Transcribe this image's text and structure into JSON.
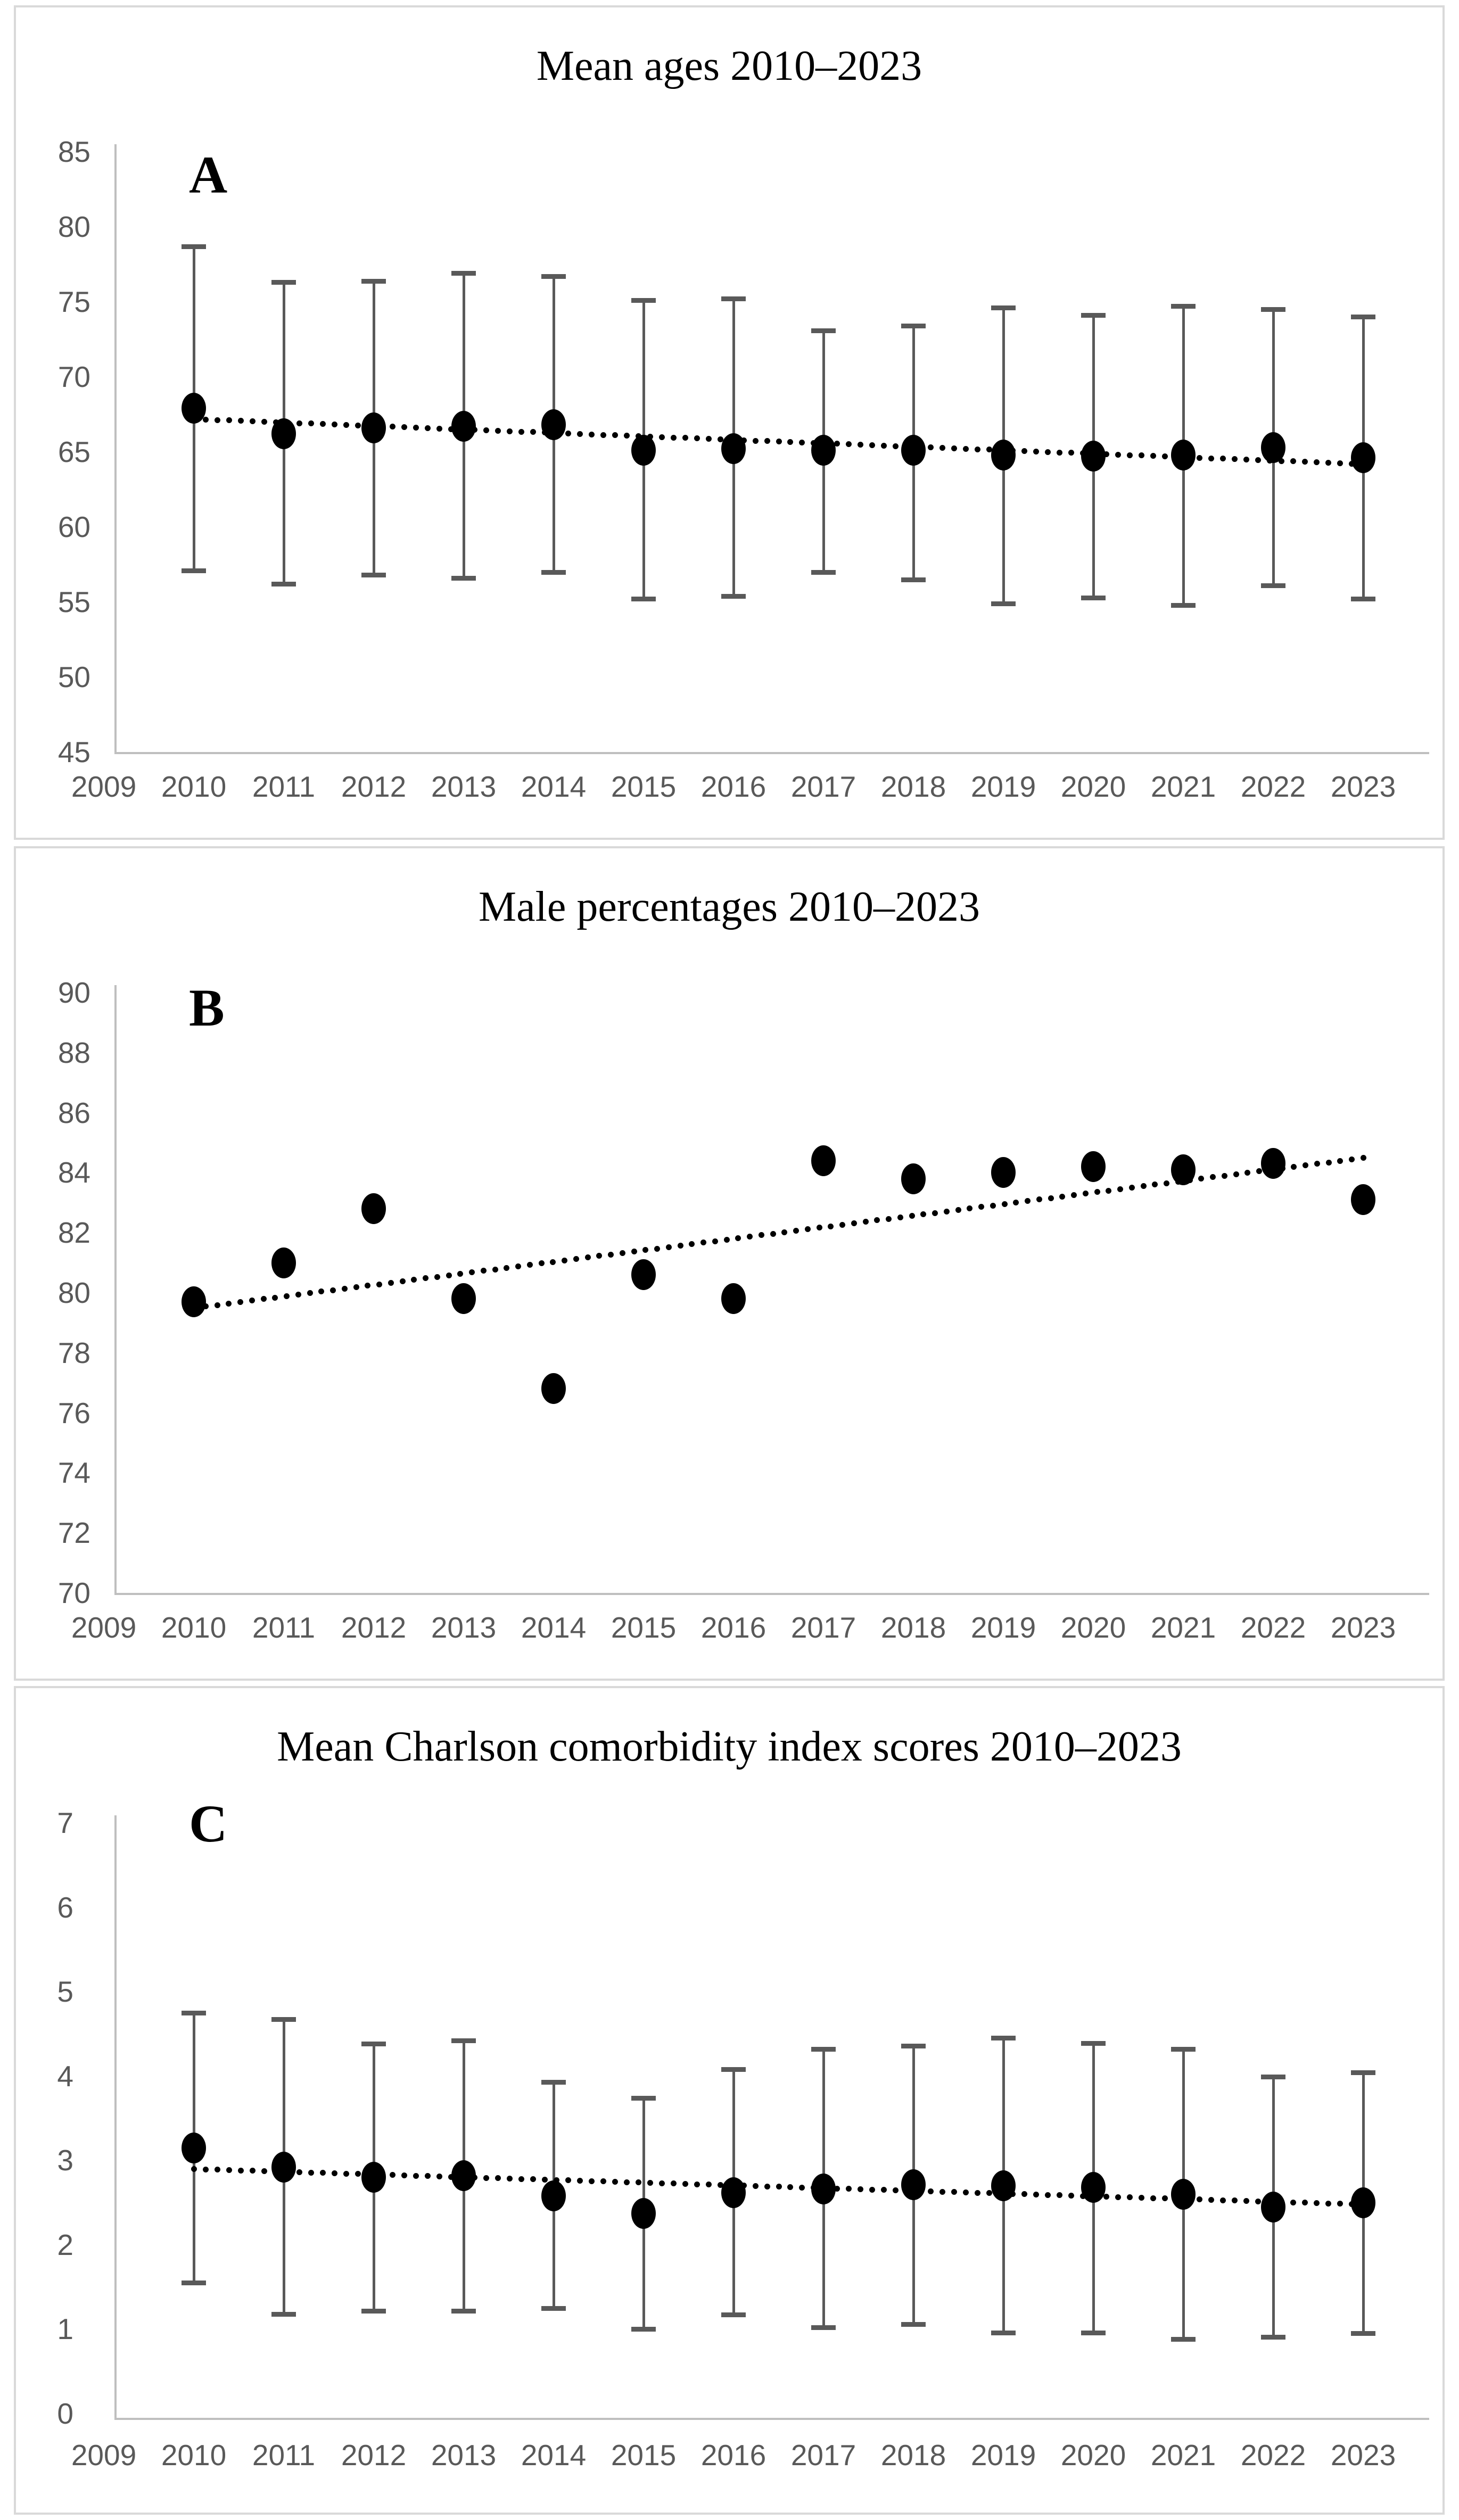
{
  "figure": {
    "background": "#ffffff",
    "panel_border_color": "#d9d9d9",
    "axis_line_color": "#bfbfbf",
    "tick_text_color": "#595959",
    "marker_color": "#000000",
    "error_bar_color": "#595959"
  },
  "chart_data": [
    {
      "id": "A",
      "type": "scatter",
      "title": "Mean ages 2010–2023",
      "panel_label": "A",
      "xlabel": "",
      "ylabel": "",
      "grid": false,
      "legend": false,
      "x_tick_labels": [
        "2009",
        "2010",
        "2011",
        "2012",
        "2013",
        "2014",
        "2015",
        "2016",
        "2017",
        "2018",
        "2019",
        "2020",
        "2021",
        "2022",
        "2023"
      ],
      "years": [
        2010,
        2011,
        2012,
        2013,
        2014,
        2015,
        2016,
        2017,
        2018,
        2019,
        2020,
        2021,
        2022,
        2023
      ],
      "ylim": [
        45,
        85
      ],
      "yticks": [
        85,
        80,
        75,
        70,
        65,
        60,
        55,
        50,
        45
      ],
      "series": [
        {
          "name": "Mean age with error bars",
          "values": [
            67.9,
            66.2,
            66.6,
            66.7,
            66.8,
            65.1,
            65.2,
            65.1,
            65.1,
            64.8,
            64.7,
            64.8,
            65.3,
            64.6
          ],
          "error_low": [
            57.1,
            56.2,
            56.8,
            56.6,
            57.0,
            55.2,
            55.4,
            57.0,
            56.5,
            54.9,
            55.3,
            54.8,
            56.1,
            55.2
          ],
          "error_high": [
            78.7,
            76.3,
            76.4,
            76.9,
            76.7,
            75.1,
            75.2,
            73.1,
            73.4,
            74.6,
            74.1,
            74.7,
            74.5,
            74.0
          ]
        }
      ],
      "trend": {
        "style": "dotted-linear",
        "x_start": 2010,
        "y_start": 67.2,
        "x_end": 2023,
        "y_end": 64.2
      }
    },
    {
      "id": "B",
      "type": "scatter",
      "title": "Male percentages 2010–2023",
      "panel_label": "B",
      "xlabel": "",
      "ylabel": "",
      "grid": false,
      "legend": false,
      "x_tick_labels": [
        "2009",
        "2010",
        "2011",
        "2012",
        "2013",
        "2014",
        "2015",
        "2016",
        "2017",
        "2018",
        "2019",
        "2020",
        "2021",
        "2022",
        "2023"
      ],
      "years": [
        2010,
        2011,
        2012,
        2013,
        2014,
        2015,
        2016,
        2017,
        2018,
        2019,
        2020,
        2021,
        2022,
        2023
      ],
      "ylim": [
        70,
        90
      ],
      "yticks": [
        90,
        88,
        86,
        84,
        82,
        80,
        78,
        76,
        74,
        72,
        70
      ],
      "series": [
        {
          "name": "Male percentage",
          "values": [
            79.7,
            81.0,
            82.8,
            79.8,
            76.8,
            80.6,
            79.8,
            84.4,
            83.8,
            84.0,
            84.2,
            84.1,
            84.3,
            83.1
          ]
        }
      ],
      "trend": {
        "style": "dotted-linear",
        "x_start": 2010,
        "y_start": 79.5,
        "x_end": 2023,
        "y_end": 84.5
      }
    },
    {
      "id": "C",
      "type": "scatter",
      "title": "Mean Charlson comorbidity index scores 2010–2023",
      "panel_label": "C",
      "xlabel": "",
      "ylabel": "",
      "grid": false,
      "legend": false,
      "x_tick_labels": [
        "2009",
        "2010",
        "2011",
        "2012",
        "2013",
        "2014",
        "2015",
        "2016",
        "2017",
        "2018",
        "2019",
        "2020",
        "2021",
        "2022",
        "2023"
      ],
      "years": [
        2010,
        2011,
        2012,
        2013,
        2014,
        2015,
        2016,
        2017,
        2018,
        2019,
        2020,
        2021,
        2022,
        2023
      ],
      "ylim": [
        0,
        7
      ],
      "yticks": [
        7,
        6,
        5,
        4,
        3,
        2,
        1,
        0
      ],
      "series": [
        {
          "name": "Mean Charlson comorbidity index score with error bars",
          "values": [
            3.15,
            2.92,
            2.8,
            2.82,
            2.58,
            2.37,
            2.62,
            2.66,
            2.71,
            2.7,
            2.68,
            2.6,
            2.45,
            2.5
          ],
          "error_low": [
            1.55,
            1.18,
            1.22,
            1.22,
            1.25,
            1.0,
            1.17,
            1.02,
            1.06,
            0.96,
            0.96,
            0.88,
            0.91,
            0.95
          ],
          "error_high": [
            4.75,
            4.67,
            4.38,
            4.42,
            3.93,
            3.74,
            4.08,
            4.32,
            4.36,
            4.45,
            4.39,
            4.32,
            3.99,
            4.04
          ]
        }
      ],
      "trend": {
        "style": "dotted-linear",
        "x_start": 2010,
        "y_start": 2.9,
        "x_end": 2023,
        "y_end": 2.48
      }
    }
  ]
}
